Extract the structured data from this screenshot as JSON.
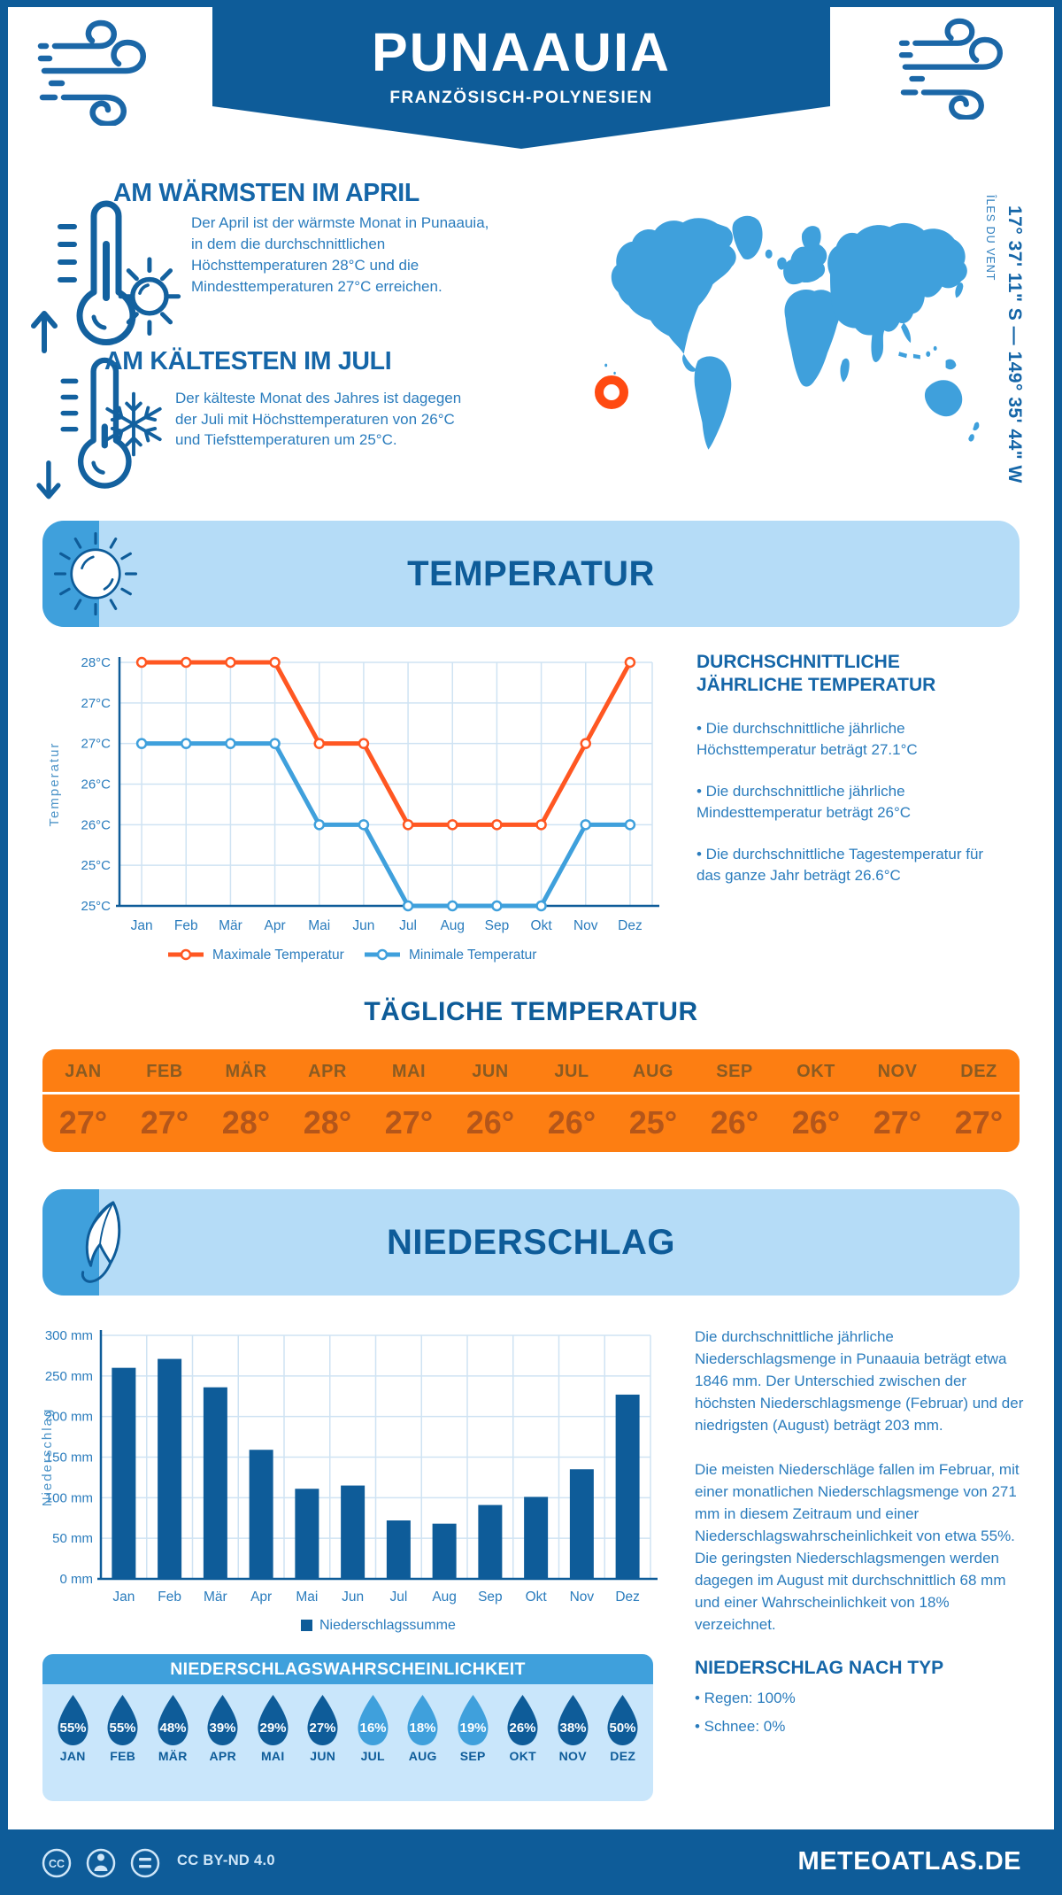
{
  "header": {
    "title": "PUNAAUIA",
    "subtitle": "FRANZÖSISCH-POLYNESIEN"
  },
  "location": {
    "coordinates": "17° 37' 11\" S — 149° 35' 44\" W",
    "region": "ÎLES DU VENT"
  },
  "highlights": {
    "warmest": {
      "title": "AM WÄRMSTEN IM APRIL",
      "text": "Der April ist der wärmste Monat in Punaauia, in dem die durchschnittlichen Höchsttemperaturen 28°C und die Mindesttemperaturen 27°C erreichen."
    },
    "coldest": {
      "title": "AM KÄLTESTEN IM JULI",
      "text": "Der kälteste Monat des Jahres ist dagegen der Juli mit Höchsttemperaturen von 26°C und Tiefsttemperaturen um 25°C."
    }
  },
  "temperature": {
    "band_title": "TEMPERATUR",
    "annual_heading": "DURCHSCHNITTLICHE JÄHRLICHE TEMPERATUR",
    "annual_bullets": [
      "• Die durchschnittliche jährliche Höchsttemperatur beträgt 27.1°C",
      "• Die durchschnittliche jährliche Mindesttemperatur beträgt 26°C",
      "• Die durchschnittliche Tagestemperatur für das ganze Jahr beträgt 26.6°C"
    ],
    "daily_heading": "TÄGLICHE TEMPERATUR",
    "daily_months": [
      "JAN",
      "FEB",
      "MÄR",
      "APR",
      "MAI",
      "JUN",
      "JUL",
      "AUG",
      "SEP",
      "OKT",
      "NOV",
      "DEZ"
    ],
    "daily_values": [
      "27°",
      "27°",
      "28°",
      "28°",
      "27°",
      "26°",
      "26°",
      "25°",
      "26°",
      "26°",
      "27°",
      "27°"
    ]
  },
  "precipitation": {
    "band_title": "NIEDERSCHLAG",
    "paragraphs": [
      "Die durchschnittliche jährliche Niederschlagsmenge in Punaauia beträgt etwa 1846 mm. Der Unterschied zwischen der höchsten Niederschlagsmenge (Februar) und der niedrigsten (August) beträgt 203 mm.",
      "Die meisten Niederschläge fallen im Februar, mit einer monatlichen Niederschlagsmenge von 271 mm in diesem Zeitraum und einer Niederschlagswahrscheinlichkeit von etwa 55%. Die geringsten Niederschlagsmengen werden dagegen im August mit durchschnittlich 68 mm und einer Wahrscheinlichkeit von 18% verzeichnet."
    ],
    "type_heading": "NIEDERSCHLAG NACH TYP",
    "type_bullets": [
      "• Regen: 100%",
      "• Schnee: 0%"
    ],
    "probability": {
      "heading": "NIEDERSCHLAGSWAHRSCHEINLICHKEIT",
      "months": [
        "JAN",
        "FEB",
        "MÄR",
        "APR",
        "MAI",
        "JUN",
        "JUL",
        "AUG",
        "SEP",
        "OKT",
        "NOV",
        "DEZ"
      ],
      "values": [
        "55%",
        "55%",
        "48%",
        "39%",
        "29%",
        "27%",
        "16%",
        "18%",
        "19%",
        "26%",
        "38%",
        "50%"
      ],
      "light_indices": [
        6,
        7,
        8
      ]
    }
  },
  "footer": {
    "license": "CC BY-ND 4.0",
    "site": "METEOATLAS.DE"
  },
  "colors": {
    "primary_dark": "#0e5c99",
    "sky_blue": "#3fa0dc",
    "band_bg": "#b5dcf7",
    "panel_bg": "#c9e6fb",
    "heading_blue": "#1566a8",
    "body_blue": "#2a7cbd",
    "grid": "#cfe3f3",
    "max_line_orange": "#ff5722",
    "marker_orange": "#ff4a11",
    "table_bg": "#fd7e12",
    "table_month_color": "#8a5b22",
    "table_value_color": "#b4561a"
  },
  "chart_data": [
    {
      "type": "line",
      "title": "",
      "x": [
        "Jan",
        "Feb",
        "Mär",
        "Apr",
        "Mai",
        "Jun",
        "Jul",
        "Aug",
        "Sep",
        "Okt",
        "Nov",
        "Dez"
      ],
      "ylabel": "Temperatur",
      "ylim": [
        25,
        28
      ],
      "yticks": [
        "28°C",
        "27°C",
        "27°C",
        "26°C",
        "26°C",
        "25°C",
        "25°C"
      ],
      "grid": true,
      "legend_position": "bottom",
      "series": [
        {
          "name": "Maximale Temperatur",
          "color": "#ff5722",
          "values": [
            28,
            28,
            28,
            28,
            27,
            27,
            26,
            26,
            26,
            26,
            27,
            28
          ]
        },
        {
          "name": "Minimale Temperatur",
          "color": "#3fa0dc",
          "values": [
            27,
            27,
            27,
            27,
            26,
            26,
            25,
            25,
            25,
            25,
            26,
            26
          ]
        }
      ]
    },
    {
      "type": "bar",
      "title": "",
      "categories": [
        "Jan",
        "Feb",
        "Mär",
        "Apr",
        "Mai",
        "Jun",
        "Jul",
        "Aug",
        "Sep",
        "Okt",
        "Nov",
        "Dez"
      ],
      "values": [
        260,
        271,
        236,
        159,
        111,
        115,
        72,
        68,
        91,
        101,
        135,
        227
      ],
      "ylabel": "Niederschlag",
      "ylim": [
        0,
        300
      ],
      "yticks": [
        "0 mm",
        "50 mm",
        "100 mm",
        "150 mm",
        "200 mm",
        "250 mm",
        "300 mm"
      ],
      "grid": true,
      "legend": "Niederschlagssumme",
      "color": "#0e5c99",
      "annual_total_mm": 1846
    }
  ]
}
